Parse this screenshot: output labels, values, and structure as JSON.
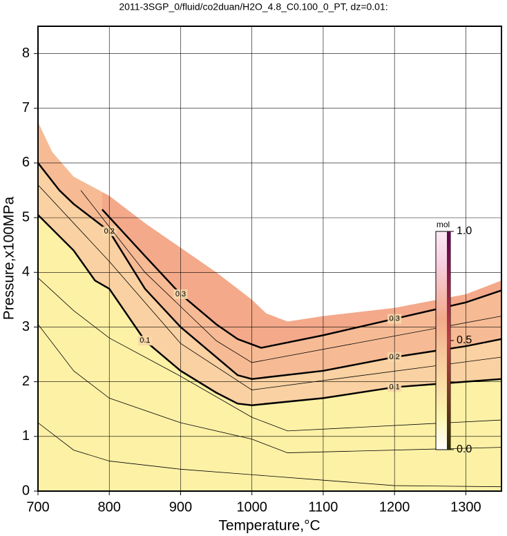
{
  "chart_data": {
    "type": "contour",
    "title": "2011-3SGP_0/fluid/co2duan/H2O_4.8_C0.100_0_PT, dz=0.01:",
    "x_label": "Temperature,°C",
    "y_label": "Pressure,x100MPa",
    "xlim": [
      700,
      1350
    ],
    "ylim": [
      0,
      8.5
    ],
    "xticks": [
      700,
      800,
      900,
      1000,
      1100,
      1200,
      1300
    ],
    "yticks": [
      0,
      1,
      2,
      3,
      4,
      5,
      6,
      7,
      8
    ],
    "grid": true,
    "background_fill": "#f3a98a",
    "boundary": {
      "x": [
        700,
        720,
        750,
        800,
        850,
        900,
        950,
        1000,
        1020,
        1050,
        1100,
        1200,
        1300,
        1350
      ],
      "y": [
        6.75,
        6.2,
        5.75,
        5.4,
        4.9,
        4.45,
        4.0,
        3.5,
        3.25,
        3.1,
        3.2,
        3.35,
        3.6,
        3.85
      ]
    },
    "series": [
      {
        "label": "0.3",
        "level": 0.3,
        "fill": "#f6bb95",
        "thick": true,
        "x": [
          790,
          850,
          900,
          950,
          980,
          1013,
          1100,
          1200,
          1300,
          1350
        ],
        "y": [
          5.15,
          4.3,
          3.6,
          3.05,
          2.78,
          2.62,
          2.85,
          3.15,
          3.45,
          3.67
        ]
      },
      {
        "label": "0.2",
        "level": 0.2,
        "fill": "#f9d1a2",
        "thick": true,
        "x": [
          700,
          730,
          750,
          800,
          850,
          900,
          950,
          980,
          1000,
          1100,
          1200,
          1300,
          1350
        ],
        "y": [
          6.0,
          5.5,
          5.25,
          4.75,
          3.7,
          3.0,
          2.45,
          2.12,
          2.05,
          2.2,
          2.45,
          2.65,
          2.78
        ]
      },
      {
        "label": "0.1",
        "level": 0.1,
        "fill": "#fdf1a6",
        "thick": true,
        "x": [
          700,
          750,
          780,
          800,
          850,
          900,
          950,
          980,
          1000,
          1100,
          1200,
          1300,
          1350
        ],
        "y": [
          5.05,
          4.4,
          3.85,
          3.7,
          2.75,
          2.2,
          1.8,
          1.6,
          1.57,
          1.7,
          1.9,
          2.0,
          2.05
        ]
      },
      {
        "level": 0.25,
        "thick": false,
        "x": [
          760,
          850,
          950,
          1000,
          1350
        ],
        "y": [
          5.5,
          4.0,
          2.75,
          2.35,
          3.2
        ]
      },
      {
        "level": 0.15,
        "thick": false,
        "x": [
          700,
          800,
          900,
          1000,
          1350
        ],
        "y": [
          5.6,
          4.2,
          2.7,
          1.85,
          2.45
        ]
      },
      {
        "level": 0.05,
        "thick": false,
        "x": [
          700,
          750,
          800,
          900,
          1000,
          1050,
          1350
        ],
        "y": [
          3.9,
          3.3,
          2.8,
          2.1,
          1.35,
          1.1,
          1.3
        ]
      },
      {
        "level": 0.03,
        "thick": false,
        "x": [
          700,
          750,
          800,
          900,
          1000,
          1050,
          1350
        ],
        "y": [
          3.05,
          2.2,
          1.7,
          1.25,
          0.95,
          0.7,
          0.8
        ]
      },
      {
        "level": 0.01,
        "thick": false,
        "x": [
          700,
          750,
          800,
          900,
          1000,
          1100,
          1200,
          1350
        ],
        "y": [
          1.25,
          0.75,
          0.55,
          0.4,
          0.3,
          0.2,
          0.1,
          0.08
        ]
      }
    ],
    "colorbar": {
      "label": "mol",
      "lim": [
        0,
        1
      ],
      "ticks": [
        {
          "value": 0,
          "label": "0.0"
        },
        {
          "value": 0.5,
          "label": "0.5"
        },
        {
          "value": 1,
          "label": "1.0"
        }
      ]
    }
  }
}
